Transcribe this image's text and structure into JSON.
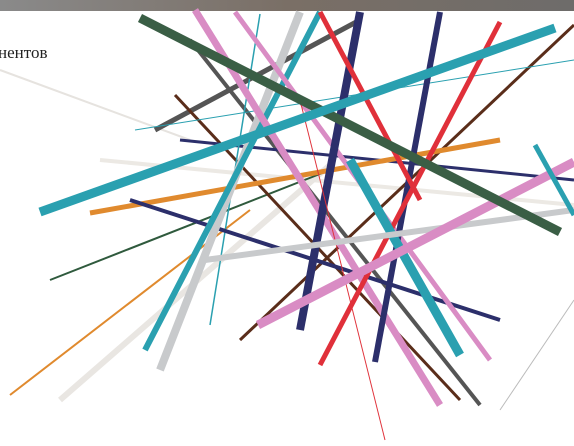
{
  "text": "нентов"
}
